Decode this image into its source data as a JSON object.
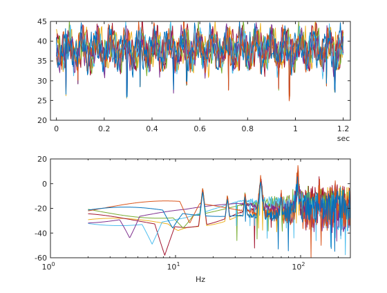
{
  "chart_data": [
    {
      "id": "time",
      "type": "line",
      "title": "",
      "xlabel": "sec",
      "ylabel": "",
      "xscale": "linear",
      "xlim": [
        -0.025,
        1.23
      ],
      "ylim": [
        20,
        45
      ],
      "xticks": [
        0,
        0.2,
        0.4,
        0.6,
        0.8,
        1,
        1.2
      ],
      "xtick_labels": [
        "0",
        "0.2",
        "0.4",
        "0.6",
        "0.8",
        "1",
        "1.2"
      ],
      "yticks": [
        20,
        25,
        30,
        35,
        40,
        45
      ],
      "ytick_labels": [
        "20",
        "25",
        "30",
        "35",
        "40",
        "45"
      ],
      "grid": false,
      "x_range": [
        0,
        1.2
      ],
      "signal": {
        "mean": 38,
        "components": [
          {
            "freq": 16.5,
            "amp": 2.4
          },
          {
            "freq": 26,
            "amp": 1.3
          },
          {
            "freq": 48,
            "amp": 2.0
          },
          {
            "freq": 95,
            "amp": 1.4
          }
        ],
        "noise": 1.4,
        "dips": [
          {
            "x": 0.04,
            "y": 26
          },
          {
            "x": 0.09,
            "y": 29
          },
          {
            "x": 0.295,
            "y": 25.5
          },
          {
            "x": 0.35,
            "y": 28
          },
          {
            "x": 0.49,
            "y": 26.5
          },
          {
            "x": 0.545,
            "y": 28.5
          },
          {
            "x": 0.72,
            "y": 27.2
          },
          {
            "x": 0.93,
            "y": 27.5
          },
          {
            "x": 0.975,
            "y": 24.8
          },
          {
            "x": 1.13,
            "y": 28
          },
          {
            "x": 1.165,
            "y": 27
          }
        ]
      },
      "series": [
        {
          "color": "#EDB120"
        },
        {
          "color": "#A2142F"
        },
        {
          "color": "#77AC30"
        },
        {
          "color": "#4DBEEE"
        },
        {
          "color": "#7E2F8E"
        },
        {
          "color": "#D95319"
        },
        {
          "color": "#0072BD"
        }
      ]
    },
    {
      "id": "freq",
      "type": "line",
      "title": "",
      "xlabel": "Hz",
      "ylabel": "",
      "xscale": "log",
      "xlim": [
        1,
        250
      ],
      "ylim": [
        -60,
        20
      ],
      "xticks": [
        1,
        10,
        100
      ],
      "xtick_labels": [
        "10^0",
        "10^1",
        "10^2"
      ],
      "xtick_base": [
        "10",
        "10",
        "10"
      ],
      "xtick_exponent": [
        "0",
        "1",
        "2"
      ],
      "yticks": [
        -60,
        -40,
        -20,
        0,
        20
      ],
      "ytick_labels": [
        "-60",
        "-40",
        "-20",
        "0",
        "20"
      ],
      "grid": false,
      "x_range": [
        2,
        250
      ],
      "peaks": [
        {
          "hz": 16.5,
          "db": -6
        },
        {
          "hz": 26,
          "db": -12
        },
        {
          "hz": 36,
          "db": -10
        },
        {
          "hz": 48,
          "db": 2
        },
        {
          "hz": 70,
          "db": -12
        },
        {
          "hz": 95,
          "db": 2
        },
        {
          "hz": 140,
          "db": -8
        },
        {
          "hz": 190,
          "db": -10
        }
      ],
      "series": [
        {
          "color": "#EDB120",
          "start_db": -34,
          "notch_hz": 10.5,
          "notch_db": -38
        },
        {
          "color": "#A2142F",
          "start_db": -30,
          "notch_hz": 8.2,
          "notch_db": -58
        },
        {
          "color": "#77AC30",
          "start_db": -22,
          "notch_hz": 11.5,
          "notch_db": -36
        },
        {
          "color": "#4DBEEE",
          "start_db": -28,
          "notch_hz": 6.5,
          "notch_db": -49
        },
        {
          "color": "#7E2F8E",
          "start_db": -26,
          "notch_hz": 4.3,
          "notch_db": -44
        },
        {
          "color": "#D95319",
          "start_db": -20,
          "notch_hz": 13,
          "notch_db": -32
        },
        {
          "color": "#0072BD",
          "start_db": -25,
          "notch_hz": 9.5,
          "notch_db": -36
        }
      ]
    }
  ]
}
